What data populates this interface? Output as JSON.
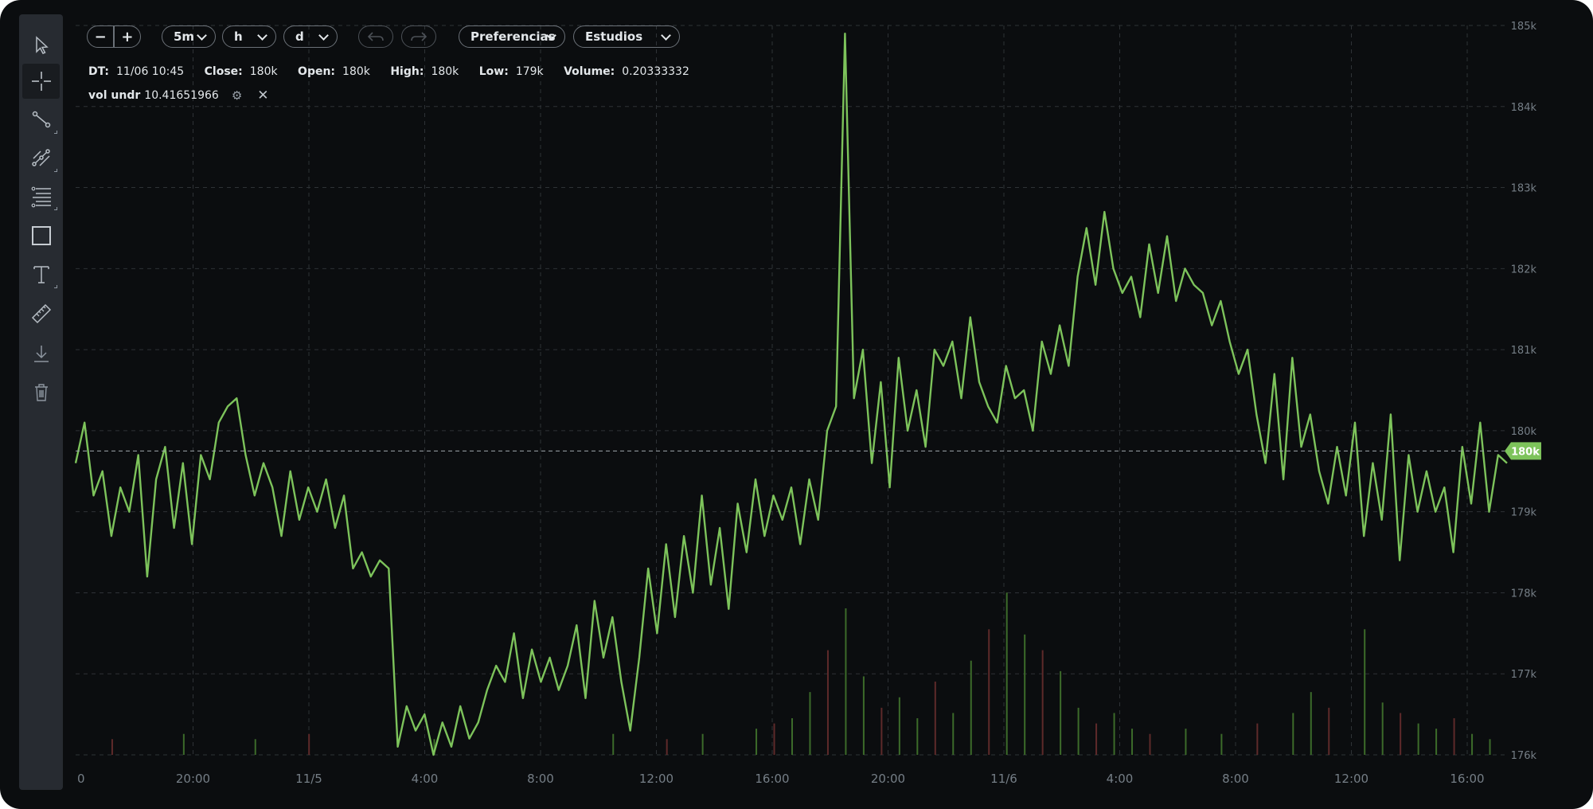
{
  "toolbar": {
    "tools": [
      {
        "name": "pointer-tool",
        "icon": "cursor-arrow-icon",
        "active": false
      },
      {
        "name": "crosshair-tool",
        "icon": "crosshair-icon",
        "active": true
      },
      {
        "name": "trend-line-tool",
        "icon": "line-segment-icon",
        "active": false
      },
      {
        "name": "multi-line-tool",
        "icon": "multi-line-icon",
        "active": false
      },
      {
        "name": "fibonacci-tool",
        "icon": "fibonacci-levels-icon",
        "active": false
      },
      {
        "name": "rectangle-tool",
        "icon": "rectangle-icon",
        "active": false
      },
      {
        "name": "text-tool",
        "icon": "text-icon",
        "active": false
      },
      {
        "name": "measure-tool",
        "icon": "ruler-icon",
        "active": false
      },
      {
        "name": "download-tool",
        "icon": "download-icon",
        "active": false
      },
      {
        "name": "delete-tool",
        "icon": "trash-icon",
        "active": false
      }
    ]
  },
  "controls": {
    "zoom_out": "−",
    "zoom_in": "+",
    "interval": "5m",
    "dropdown_h": "h",
    "dropdown_d": "d",
    "preferences": "Preferencias",
    "studies": "Estudios"
  },
  "info": {
    "dt_label": "DT:",
    "dt": "11/06 10:45",
    "close_label": "Close:",
    "close": "180k",
    "open_label": "Open:",
    "open": "180k",
    "high_label": "High:",
    "high": "180k",
    "low_label": "Low:",
    "low": "179k",
    "volume_label": "Volume:",
    "volume": "0.20333332"
  },
  "study": {
    "name": "vol undr",
    "value": "10.41651966"
  },
  "colors": {
    "background": "#0b0d0f",
    "price_line": "#7dc35b",
    "grid": "#2e3236",
    "axis_text": "#757e86",
    "vol_up": "#3c6b2a",
    "vol_down": "#5e2a2a",
    "toolbar": "#272b31"
  },
  "chart_data": {
    "type": "line",
    "y_ticks": [
      "185k",
      "184k",
      "183k",
      "182k",
      "181k",
      "180k",
      "179k",
      "178k",
      "177k",
      "176k"
    ],
    "ylim": [
      176000,
      185000
    ],
    "x_ticks": [
      "0",
      "20:00",
      "11/5",
      "4:00",
      "8:00",
      "12:00",
      "16:00",
      "20:00",
      "11/6",
      "4:00",
      "8:00",
      "12:00",
      "16:00"
    ],
    "last_price_label": "180k",
    "last_price": 179750,
    "price_keypoints": [
      [
        0,
        179600
      ],
      [
        1,
        180100
      ],
      [
        2,
        179200
      ],
      [
        3,
        179500
      ],
      [
        4,
        178700
      ],
      [
        5,
        179300
      ],
      [
        6,
        179000
      ],
      [
        7,
        179700
      ],
      [
        8,
        178200
      ],
      [
        9,
        179400
      ],
      [
        10,
        179800
      ],
      [
        11,
        178800
      ],
      [
        12,
        179600
      ],
      [
        13,
        178600
      ],
      [
        14,
        179700
      ],
      [
        15,
        179400
      ],
      [
        16,
        180100
      ],
      [
        17,
        180300
      ],
      [
        18,
        180400
      ],
      [
        19,
        179700
      ],
      [
        20,
        179200
      ],
      [
        21,
        179600
      ],
      [
        22,
        179300
      ],
      [
        23,
        178700
      ],
      [
        24,
        179500
      ],
      [
        25,
        178900
      ],
      [
        26,
        179300
      ],
      [
        27,
        179000
      ],
      [
        28,
        179400
      ],
      [
        29,
        178800
      ],
      [
        30,
        179200
      ],
      [
        31,
        178300
      ],
      [
        32,
        178500
      ],
      [
        33,
        178200
      ],
      [
        34,
        178400
      ],
      [
        35,
        178300
      ],
      [
        36,
        176100
      ],
      [
        37,
        176600
      ],
      [
        38,
        176300
      ],
      [
        39,
        176500
      ],
      [
        40,
        176000
      ],
      [
        41,
        176400
      ],
      [
        42,
        176100
      ],
      [
        43,
        176600
      ],
      [
        44,
        176200
      ],
      [
        45,
        176400
      ],
      [
        46,
        176800
      ],
      [
        47,
        177100
      ],
      [
        48,
        176900
      ],
      [
        49,
        177500
      ],
      [
        50,
        176700
      ],
      [
        51,
        177300
      ],
      [
        52,
        176900
      ],
      [
        53,
        177200
      ],
      [
        54,
        176800
      ],
      [
        55,
        177100
      ],
      [
        56,
        177600
      ],
      [
        57,
        176700
      ],
      [
        58,
        177900
      ],
      [
        59,
        177200
      ],
      [
        60,
        177700
      ],
      [
        61,
        176900
      ],
      [
        62,
        176300
      ],
      [
        63,
        177200
      ],
      [
        64,
        178300
      ],
      [
        65,
        177500
      ],
      [
        66,
        178600
      ],
      [
        67,
        177700
      ],
      [
        68,
        178700
      ],
      [
        69,
        178000
      ],
      [
        70,
        179200
      ],
      [
        71,
        178100
      ],
      [
        72,
        178800
      ],
      [
        73,
        177800
      ],
      [
        74,
        179100
      ],
      [
        75,
        178500
      ],
      [
        76,
        179400
      ],
      [
        77,
        178700
      ],
      [
        78,
        179200
      ],
      [
        79,
        178900
      ],
      [
        80,
        179300
      ],
      [
        81,
        178600
      ],
      [
        82,
        179400
      ],
      [
        83,
        178900
      ],
      [
        84,
        180000
      ],
      [
        85,
        180300
      ],
      [
        86,
        184900
      ],
      [
        87,
        180400
      ],
      [
        88,
        181000
      ],
      [
        89,
        179600
      ],
      [
        90,
        180600
      ],
      [
        91,
        179300
      ],
      [
        92,
        180900
      ],
      [
        93,
        180000
      ],
      [
        94,
        180500
      ],
      [
        95,
        179800
      ],
      [
        96,
        181000
      ],
      [
        97,
        180800
      ],
      [
        98,
        181100
      ],
      [
        99,
        180400
      ],
      [
        100,
        181400
      ],
      [
        101,
        180600
      ],
      [
        102,
        180300
      ],
      [
        103,
        180100
      ],
      [
        104,
        180800
      ],
      [
        105,
        180400
      ],
      [
        106,
        180500
      ],
      [
        107,
        180000
      ],
      [
        108,
        181100
      ],
      [
        109,
        180700
      ],
      [
        110,
        181300
      ],
      [
        111,
        180800
      ],
      [
        112,
        181900
      ],
      [
        113,
        182500
      ],
      [
        114,
        181800
      ],
      [
        115,
        182700
      ],
      [
        116,
        182000
      ],
      [
        117,
        181700
      ],
      [
        118,
        181900
      ],
      [
        119,
        181400
      ],
      [
        120,
        182300
      ],
      [
        121,
        181700
      ],
      [
        122,
        182400
      ],
      [
        123,
        181600
      ],
      [
        124,
        182000
      ],
      [
        125,
        181800
      ],
      [
        126,
        181700
      ],
      [
        127,
        181300
      ],
      [
        128,
        181600
      ],
      [
        129,
        181100
      ],
      [
        130,
        180700
      ],
      [
        131,
        181000
      ],
      [
        132,
        180200
      ],
      [
        133,
        179600
      ],
      [
        134,
        180700
      ],
      [
        135,
        179400
      ],
      [
        136,
        180900
      ],
      [
        137,
        179800
      ],
      [
        138,
        180200
      ],
      [
        139,
        179500
      ],
      [
        140,
        179100
      ],
      [
        141,
        179800
      ],
      [
        142,
        179200
      ],
      [
        143,
        180100
      ],
      [
        144,
        178700
      ],
      [
        145,
        179600
      ],
      [
        146,
        178900
      ],
      [
        147,
        180200
      ],
      [
        148,
        178400
      ],
      [
        149,
        179700
      ],
      [
        150,
        179000
      ],
      [
        151,
        179500
      ],
      [
        152,
        179000
      ],
      [
        153,
        179300
      ],
      [
        154,
        178500
      ],
      [
        155,
        179800
      ],
      [
        156,
        179100
      ],
      [
        157,
        180100
      ],
      [
        158,
        179000
      ],
      [
        159,
        179700
      ],
      [
        160,
        179600
      ]
    ],
    "price_x_range": [
      0,
      160
    ],
    "volume_bars": [
      [
        4,
        0.3
      ],
      [
        12,
        0.4
      ],
      [
        20,
        0.3
      ],
      [
        26,
        0.4
      ],
      [
        40,
        0.3
      ],
      [
        60,
        0.4
      ],
      [
        66,
        0.3
      ],
      [
        70,
        0.4
      ],
      [
        76,
        0.5
      ],
      [
        78,
        0.6
      ],
      [
        80,
        0.7
      ],
      [
        82,
        1.2
      ],
      [
        84,
        2.0
      ],
      [
        86,
        2.8
      ],
      [
        88,
        1.5
      ],
      [
        90,
        0.9
      ],
      [
        92,
        1.1
      ],
      [
        94,
        0.7
      ],
      [
        96,
        1.4
      ],
      [
        98,
        0.8
      ],
      [
        100,
        1.8
      ],
      [
        102,
        2.4
      ],
      [
        104,
        3.1
      ],
      [
        106,
        2.3
      ],
      [
        108,
        2.0
      ],
      [
        110,
        1.6
      ],
      [
        112,
        0.9
      ],
      [
        114,
        0.6
      ],
      [
        116,
        0.8
      ],
      [
        118,
        0.5
      ],
      [
        120,
        0.4
      ],
      [
        124,
        0.5
      ],
      [
        128,
        0.4
      ],
      [
        132,
        0.6
      ],
      [
        136,
        0.8
      ],
      [
        138,
        1.2
      ],
      [
        140,
        0.9
      ],
      [
        144,
        2.4
      ],
      [
        146,
        1.0
      ],
      [
        148,
        0.8
      ],
      [
        150,
        0.6
      ],
      [
        152,
        0.5
      ],
      [
        154,
        0.7
      ],
      [
        156,
        0.4
      ],
      [
        158,
        0.3
      ]
    ],
    "grid": true,
    "y_axis_position": "right"
  }
}
